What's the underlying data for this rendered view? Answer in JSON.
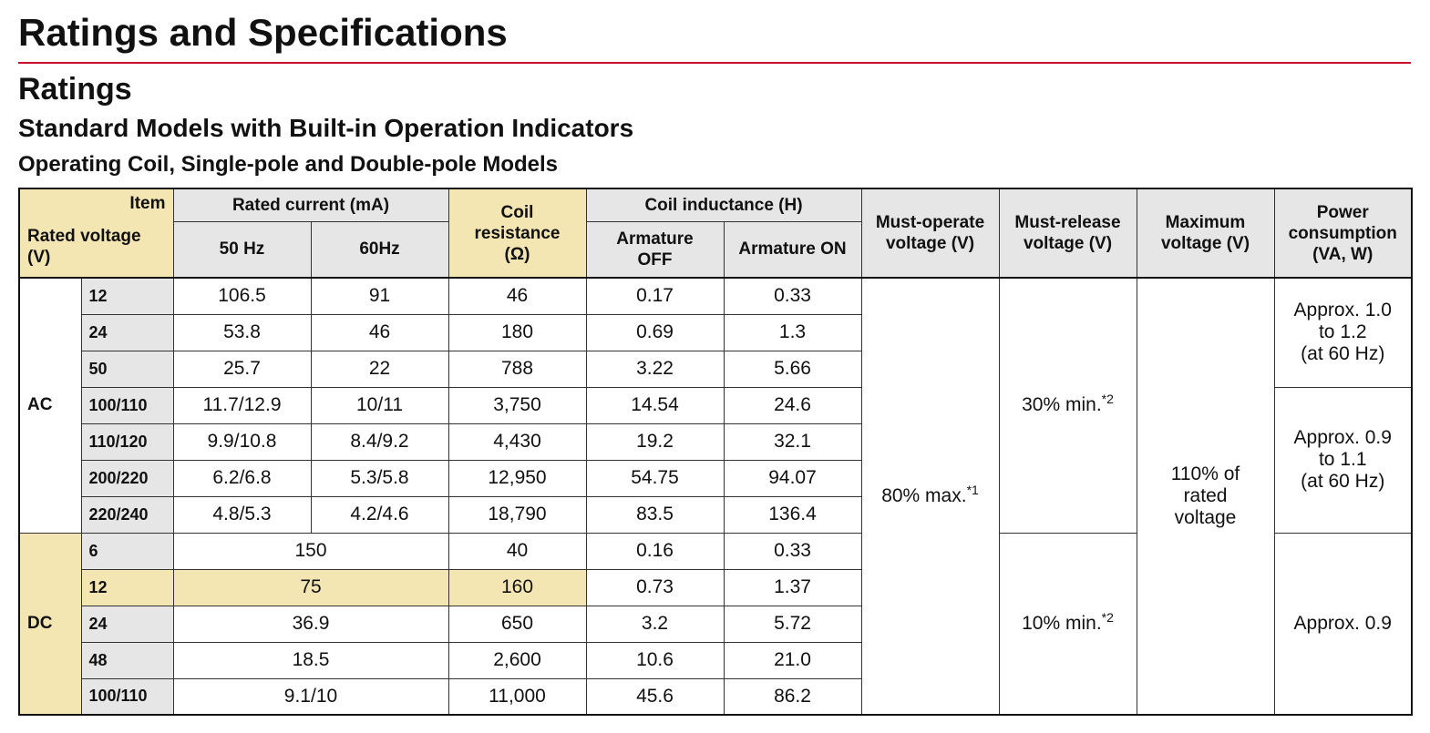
{
  "page": {
    "title": "Ratings and Specifications",
    "section": "Ratings",
    "subsection": "Standard Models with Built-in Operation Indicators",
    "subsubsection": "Operating Coil, Single-pole and Double-pole Models"
  },
  "colors": {
    "accent_rule": "#c8102e",
    "header_yellow": "#f3e6b3",
    "label_gray": "#e6e6e6"
  },
  "table": {
    "headers": {
      "item": "Item",
      "rated_voltage": "Rated voltage",
      "rated_voltage_unit": "(V)",
      "rated_current": "Rated current (mA)",
      "hz50": "50 Hz",
      "hz60": "60Hz",
      "coil_resistance_1": "Coil",
      "coil_resistance_2": "resistance",
      "coil_resistance_3": "(Ω)",
      "coil_inductance": "Coil inductance (H)",
      "armature_off_1": "Armature",
      "armature_off_2": "OFF",
      "armature_on": "Armature ON",
      "must_operate_1": "Must-operate",
      "must_operate_2": "voltage (V)",
      "must_release_1": "Must-release",
      "must_release_2": "voltage (V)",
      "max_voltage_1": "Maximum",
      "max_voltage_2": "voltage (V)",
      "power_1": "Power",
      "power_2": "consumption",
      "power_3": "(VA, W)"
    },
    "ac": {
      "label": "AC",
      "rows": [
        {
          "voltage": "12",
          "i50": "106.5",
          "i60": "91",
          "res": "46",
          "off": "0.17",
          "on": "0.33"
        },
        {
          "voltage": "24",
          "i50": "53.8",
          "i60": "46",
          "res": "180",
          "off": "0.69",
          "on": "1.3"
        },
        {
          "voltage": "50",
          "i50": "25.7",
          "i60": "22",
          "res": "788",
          "off": "3.22",
          "on": "5.66"
        },
        {
          "voltage": "100/110",
          "i50": "11.7/12.9",
          "i60": "10/11",
          "res": "3,750",
          "off": "14.54",
          "on": "24.6"
        },
        {
          "voltage": "110/120",
          "i50": "9.9/10.8",
          "i60": "8.4/9.2",
          "res": "4,430",
          "off": "19.2",
          "on": "32.1"
        },
        {
          "voltage": "200/220",
          "i50": "6.2/6.8",
          "i60": "5.3/5.8",
          "res": "12,950",
          "off": "54.75",
          "on": "94.07"
        },
        {
          "voltage": "220/240",
          "i50": "4.8/5.3",
          "i60": "4.2/4.6",
          "res": "18,790",
          "off": "83.5",
          "on": "136.4"
        }
      ],
      "must_release": "30% min.",
      "must_release_note": "*2",
      "power_a_1": "Approx. 1.0",
      "power_a_2": "to 1.2",
      "power_a_3": "(at 60 Hz)",
      "power_b_1": "Approx. 0.9",
      "power_b_2": "to 1.1",
      "power_b_3": "(at 60 Hz)"
    },
    "dc": {
      "label": "DC",
      "rows": [
        {
          "voltage": "6",
          "current": "150",
          "res": "40",
          "off": "0.16",
          "on": "0.33"
        },
        {
          "voltage": "12",
          "current": "75",
          "res": "160",
          "off": "0.73",
          "on": "1.37"
        },
        {
          "voltage": "24",
          "current": "36.9",
          "res": "650",
          "off": "3.2",
          "on": "5.72"
        },
        {
          "voltage": "48",
          "current": "18.5",
          "res": "2,600",
          "off": "10.6",
          "on": "21.0"
        },
        {
          "voltage": "100/110",
          "current": "9.1/10",
          "res": "11,000",
          "off": "45.6",
          "on": "86.2"
        }
      ],
      "must_release": "10% min.",
      "must_release_note": "*2",
      "power": "Approx. 0.9"
    },
    "must_operate": "80% max.",
    "must_operate_note": "*1",
    "max_voltage_1": "110% of",
    "max_voltage_2": "rated",
    "max_voltage_3": "voltage"
  }
}
